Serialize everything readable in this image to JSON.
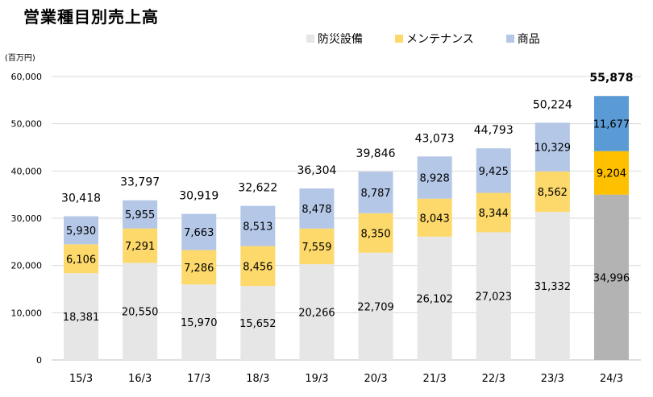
{
  "chart_data": {
    "type": "bar",
    "stacked": true,
    "title": "営業種目別売上高",
    "unit_label": "(百万円)",
    "categories": [
      "15/3",
      "16/3",
      "17/3",
      "18/3",
      "19/3",
      "20/3",
      "21/3",
      "22/3",
      "23/3",
      "24/3"
    ],
    "series": [
      {
        "name": "防災設備",
        "values": [
          18381,
          20550,
          15970,
          15652,
          20266,
          22709,
          26102,
          27023,
          31332,
          34996
        ],
        "color": "#e6e6e6",
        "highlight_color": "#b3b3b3"
      },
      {
        "name": "メンテナンス",
        "values": [
          6106,
          7291,
          7286,
          8456,
          7559,
          8350,
          8043,
          8344,
          8562,
          9204
        ],
        "color": "#fdd96b",
        "highlight_color": "#ffc000"
      },
      {
        "name": "商品",
        "values": [
          5930,
          5955,
          7663,
          8513,
          8478,
          8787,
          8928,
          9425,
          10329,
          11677
        ],
        "color": "#b4c7e7",
        "highlight_color": "#5b9bd5"
      }
    ],
    "totals": [
      30418,
      33797,
      30919,
      32622,
      36304,
      39846,
      43073,
      44793,
      50224,
      55878
    ],
    "highlight_last": true,
    "ylim": [
      0,
      60000
    ],
    "yticks": [
      0,
      10000,
      20000,
      30000,
      40000,
      50000,
      60000
    ],
    "grid": true,
    "legend_position": "top-right"
  }
}
